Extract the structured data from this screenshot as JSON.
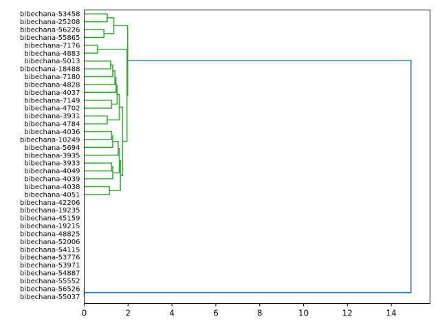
{
  "chart_data": {
    "type": "dendrogram",
    "orientation": "horizontal",
    "xlim": [
      0,
      15.7
    ],
    "xticks": [
      "0",
      "2",
      "4",
      "6",
      "8",
      "10",
      "12",
      "14"
    ],
    "leaves": [
      "bibechana-53458",
      "bibechana-25208",
      "bibechana-56226",
      "bibechana-55865",
      "bibechana-7176",
      "bibechana-4883",
      "bibechana-5013",
      "bibechana-18488",
      "bibechana-7180",
      "bibechana-4828",
      "bibechana-4037",
      "bibechana-7149",
      "bibechana-4702",
      "bibechana-3931",
      "bibechana-4784",
      "bibechana-4036",
      "bibechana-10249",
      "bibechana-5694",
      "bibechana-3935",
      "bibechana-3933",
      "bibechana-4049",
      "bibechana-4039",
      "bibechana-4038",
      "bibechana-4051",
      "bibechana-42206",
      "bibechana-19235",
      "bibechana-45159",
      "bibechana-19215",
      "bibechana-48825",
      "bibechana-52006",
      "bibechana-54115",
      "bibechana-53776",
      "bibechana-53971",
      "bibechana-54887",
      "bibechana-55552",
      "bibechana-56526",
      "bibechana-55037"
    ],
    "merges": [
      {
        "id": "A",
        "a": 0,
        "b": 1,
        "h": 1.05
      },
      {
        "id": "B",
        "a": 2,
        "b": 3,
        "h": 0.9
      },
      {
        "id": "C",
        "a": "A",
        "b": "B",
        "h": 1.35
      },
      {
        "id": "D",
        "a": 4,
        "b": 5,
        "h": 0.6
      },
      {
        "id": "E",
        "a": 6,
        "b": 7,
        "h": 1.2
      },
      {
        "id": "F",
        "a": "E",
        "b": 8,
        "h": 1.3
      },
      {
        "id": "G",
        "a": "F",
        "b": 9,
        "h": 1.4
      },
      {
        "id": "H",
        "a": "G",
        "b": 10,
        "h": 1.45
      },
      {
        "id": "I",
        "a": 11,
        "b": 12,
        "h": 1.25
      },
      {
        "id": "J",
        "a": "H",
        "b": "I",
        "h": 1.5
      },
      {
        "id": "K",
        "a": 13,
        "b": 14,
        "h": 1.05
      },
      {
        "id": "L",
        "a": "J",
        "b": "K",
        "h": 1.6
      },
      {
        "id": "M",
        "a": 15,
        "b": 16,
        "h": 1.25
      },
      {
        "id": "N",
        "a": "M",
        "b": 17,
        "h": 1.3
      },
      {
        "id": "O",
        "a": "N",
        "b": 18,
        "h": 1.55
      },
      {
        "id": "P",
        "a": 19,
        "b": 20,
        "h": 1.25
      },
      {
        "id": "Q",
        "a": "P",
        "b": 21,
        "h": 1.3
      },
      {
        "id": "R",
        "a": "O",
        "b": "Q",
        "h": 1.6
      },
      {
        "id": "S",
        "a": 22,
        "b": 23,
        "h": 1.15
      },
      {
        "id": "T",
        "a": "R",
        "b": "S",
        "h": 1.65
      },
      {
        "id": "U",
        "a": "L",
        "b": "T",
        "h": 1.75
      },
      {
        "id": "V",
        "a": "D",
        "b": "U",
        "h": 1.95
      },
      {
        "id": "W",
        "a": "C",
        "b": "V",
        "h": 1.98
      },
      {
        "id": "X",
        "a": 35,
        "b": 36,
        "h": 0.0
      },
      {
        "id": "Y",
        "a": "W",
        "b": "X",
        "h": 14.9
      }
    ],
    "colors": {
      "cluster": "#2ca02c",
      "above_threshold": "#1f77b4",
      "axis": "#000000"
    },
    "grid": false
  }
}
